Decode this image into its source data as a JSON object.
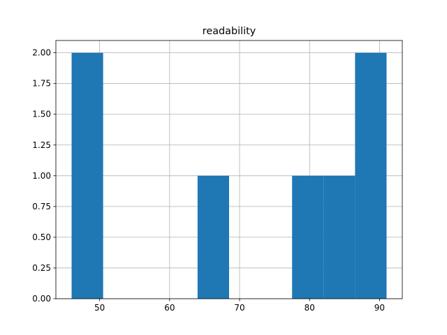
{
  "chart_data": {
    "type": "histogram",
    "title": "readability",
    "bins": [
      46,
      50.5,
      55,
      59.5,
      64,
      68.5,
      73,
      77.5,
      82,
      86.5,
      91
    ],
    "values": [
      2,
      0,
      0,
      0,
      1,
      0,
      0,
      1,
      1,
      2
    ],
    "color": "#1f77b4",
    "xlim": [
      43.75,
      93.25
    ],
    "xticks": [
      50,
      60,
      70,
      80,
      90
    ],
    "ylim": [
      0,
      2.1
    ],
    "yticks": [
      {
        "value": 0,
        "label": "0.00"
      },
      {
        "value": 0.25,
        "label": "0.25"
      },
      {
        "value": 0.5,
        "label": "0.50"
      },
      {
        "value": 0.75,
        "label": "0.75"
      },
      {
        "value": 1,
        "label": "1.00"
      },
      {
        "value": 1.25,
        "label": "1.25"
      },
      {
        "value": 1.5,
        "label": "1.50"
      },
      {
        "value": 1.75,
        "label": "1.75"
      },
      {
        "value": 2,
        "label": "2.00"
      }
    ],
    "grid": true
  }
}
